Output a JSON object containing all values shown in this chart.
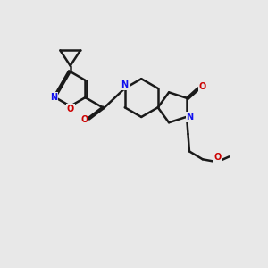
{
  "bg_color": "#e8e8e8",
  "bond_color": "#1a1a1a",
  "N_color": "#1010ee",
  "O_color": "#cc0000",
  "bond_width": 1.8,
  "dbo": 0.06,
  "figsize": [
    3.0,
    3.0
  ],
  "dpi": 100,
  "xlim": [
    0,
    10
  ],
  "ylim": [
    0,
    10
  ]
}
